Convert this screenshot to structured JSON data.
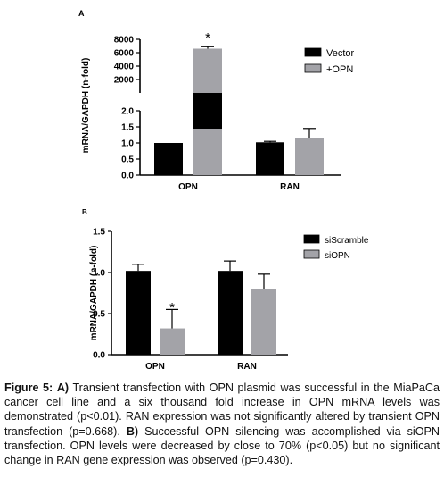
{
  "chart_data": [
    {
      "panel_label": "A",
      "type": "bar",
      "broken_axis": true,
      "ylabel": "mRNA/GAPDH (n-fold)",
      "categories": [
        "OPN",
        "RAN"
      ],
      "series": [
        {
          "name": "Vector",
          "color": "#000000",
          "values": [
            1.0,
            1.02
          ],
          "errors": [
            0,
            0.03
          ]
        },
        {
          "name": "+OPN",
          "color": "#a3a3a8",
          "values": [
            6600,
            1.15
          ],
          "errors": [
            300,
            0.3
          ]
        }
      ],
      "segment_lower": {
        "ylim": [
          0.0,
          2.0
        ],
        "ticks": [
          "0.0",
          "0.5",
          "1.0",
          "1.5",
          "2.0"
        ]
      },
      "segment_upper": {
        "ylim": [
          0,
          8000
        ],
        "ticks": [
          "2000",
          "4000",
          "6000",
          "8000"
        ]
      },
      "annotations": [
        {
          "text": "*",
          "category": "OPN",
          "series": "+OPN"
        }
      ],
      "legend_placement": "top-right"
    },
    {
      "panel_label": "B",
      "type": "bar",
      "ylabel": "mRNA/GAPDH (n-fold)",
      "categories": [
        "OPN",
        "RAN"
      ],
      "ylim": [
        0.0,
        1.5
      ],
      "ticks": [
        "0.0",
        "0.5",
        "1.0",
        "1.5"
      ],
      "series": [
        {
          "name": "siScramble",
          "color": "#000000",
          "values": [
            1.02,
            1.02
          ],
          "errors": [
            0.08,
            0.12
          ]
        },
        {
          "name": "siOPN",
          "color": "#a3a3a8",
          "values": [
            0.32,
            0.8
          ],
          "errors": [
            0.23,
            0.18
          ]
        }
      ],
      "annotations": [
        {
          "text": "*",
          "category": "OPN",
          "series": "siOPN"
        }
      ],
      "legend_placement": "top-right"
    }
  ],
  "caption": {
    "figure_label": "Figure 5:",
    "a_label": "A)",
    "a_text": "Transient transfection with OPN plasmid was successful in the MiaPaCa cancer cell line and a six thousand fold increase in OPN mRNA levels was demonstrated (p<0.01). RAN expression was not significantly altered by transient OPN transfection (p=0.668).",
    "b_label": "B)",
    "b_text": "Successful OPN silencing was accomplished via siOPN transfection. OPN levels were decreased by close to 70% (p<0.05) but no significant change in RAN gene expression was observed (p=0.430)."
  }
}
